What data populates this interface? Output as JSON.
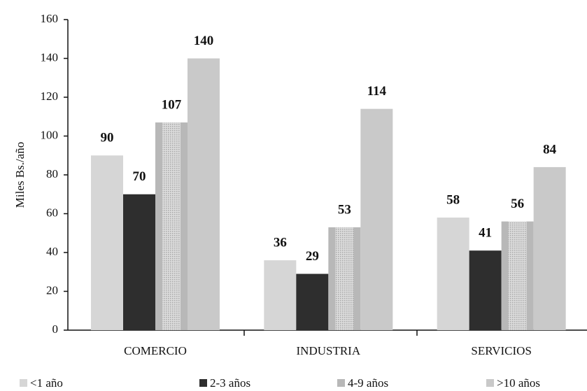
{
  "chart_data": {
    "type": "bar",
    "y_label": "Miles Bs./año",
    "categories": [
      "COMERCIO",
      "INDUSTRIA",
      "SERVICIOS"
    ],
    "series": [
      {
        "name": "<1 año",
        "color": "#d6d6d6",
        "values": [
          90,
          36,
          58
        ]
      },
      {
        "name": "2-3 años",
        "color": "#2e2e2e",
        "values": [
          70,
          29,
          41
        ]
      },
      {
        "name": "4-9 años",
        "color": "#b8b8b8",
        "values": [
          107,
          53,
          56
        ]
      },
      {
        "name": ">10 años",
        "color": "#c9c9c9",
        "values": [
          140,
          114,
          84
        ]
      }
    ],
    "ylim": [
      0,
      160
    ],
    "yticks": [
      0,
      20,
      40,
      60,
      80,
      100,
      120,
      140,
      160
    ],
    "legend": "bottom"
  }
}
